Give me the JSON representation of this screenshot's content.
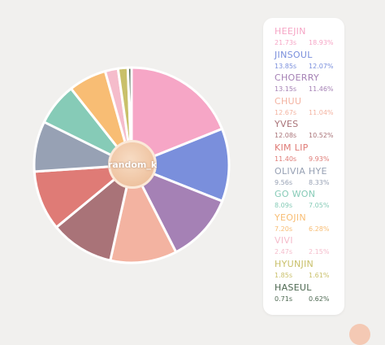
{
  "chart_data": {
    "type": "pie",
    "center_label": "random_k",
    "slices": [
      {
        "name": "HEEJIN",
        "time": "21.73s",
        "percent_label": "18.93%",
        "value": 18.93,
        "color": "#f6a6c6"
      },
      {
        "name": "JINSOUL",
        "time": "13.85s",
        "percent_label": "12.07%",
        "value": 12.07,
        "color": "#7a8fdc"
      },
      {
        "name": "CHOERRY",
        "time": "13.15s",
        "percent_label": "11.46%",
        "value": 11.46,
        "color": "#a581b5"
      },
      {
        "name": "CHUU",
        "time": "12.67s",
        "percent_label": "11.04%",
        "value": 11.04,
        "color": "#f3b3a1"
      },
      {
        "name": "YVES",
        "time": "12.08s",
        "percent_label": "10.52%",
        "value": 10.52,
        "color": "#a97378"
      },
      {
        "name": "KIM LIP",
        "time": "11.40s",
        "percent_label": "9.93%",
        "value": 9.93,
        "color": "#df7b76"
      },
      {
        "name": "OLIVIA HYE",
        "time": "9.56s",
        "percent_label": "8.33%",
        "value": 8.33,
        "color": "#97a1b4"
      },
      {
        "name": "GO WON",
        "time": "8.09s",
        "percent_label": "7.05%",
        "value": 7.05,
        "color": "#86cbb7"
      },
      {
        "name": "YEOJIN",
        "time": "7.20s",
        "percent_label": "6.28%",
        "value": 6.28,
        "color": "#f8bd74"
      },
      {
        "name": "VIVI",
        "time": "2.47s",
        "percent_label": "2.15%",
        "value": 2.15,
        "color": "#f5bccb"
      },
      {
        "name": "HYUNJIN",
        "time": "1.85s",
        "percent_label": "1.61%",
        "value": 1.61,
        "color": "#c9c06a"
      },
      {
        "name": "HASEUL",
        "time": "0.71s",
        "percent_label": "0.62%",
        "value": 0.62,
        "color": "#4d6851"
      }
    ]
  }
}
